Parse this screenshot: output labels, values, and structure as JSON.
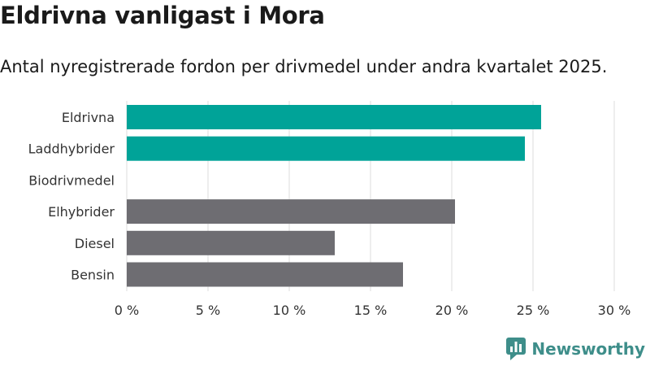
{
  "title": "Eldrivna vanligast i Mora",
  "subtitle": "Antal nyregistrerade fordon per drivmedel under andra kvartalet 2025.",
  "brand": "Newsworthy",
  "colors": {
    "highlight": "#00a398",
    "base": "#6e6d72",
    "grid": "#dedede",
    "brand": "#3e8e8a"
  },
  "chart_data": {
    "type": "bar",
    "orientation": "horizontal",
    "categories": [
      "Eldrivna",
      "Laddhybrider",
      "Biodrivmedel",
      "Elhybrider",
      "Diesel",
      "Bensin"
    ],
    "values": [
      25.5,
      24.5,
      0,
      20.2,
      12.8,
      17.0
    ],
    "highlight": [
      true,
      true,
      true,
      false,
      false,
      false
    ],
    "xlim": [
      0,
      30
    ],
    "xticks": [
      0,
      5,
      10,
      15,
      20,
      25,
      30
    ],
    "xtick_labels": [
      "0 %",
      "5 %",
      "10 %",
      "15 %",
      "20 %",
      "25 %",
      "30 %"
    ],
    "grid": true
  }
}
